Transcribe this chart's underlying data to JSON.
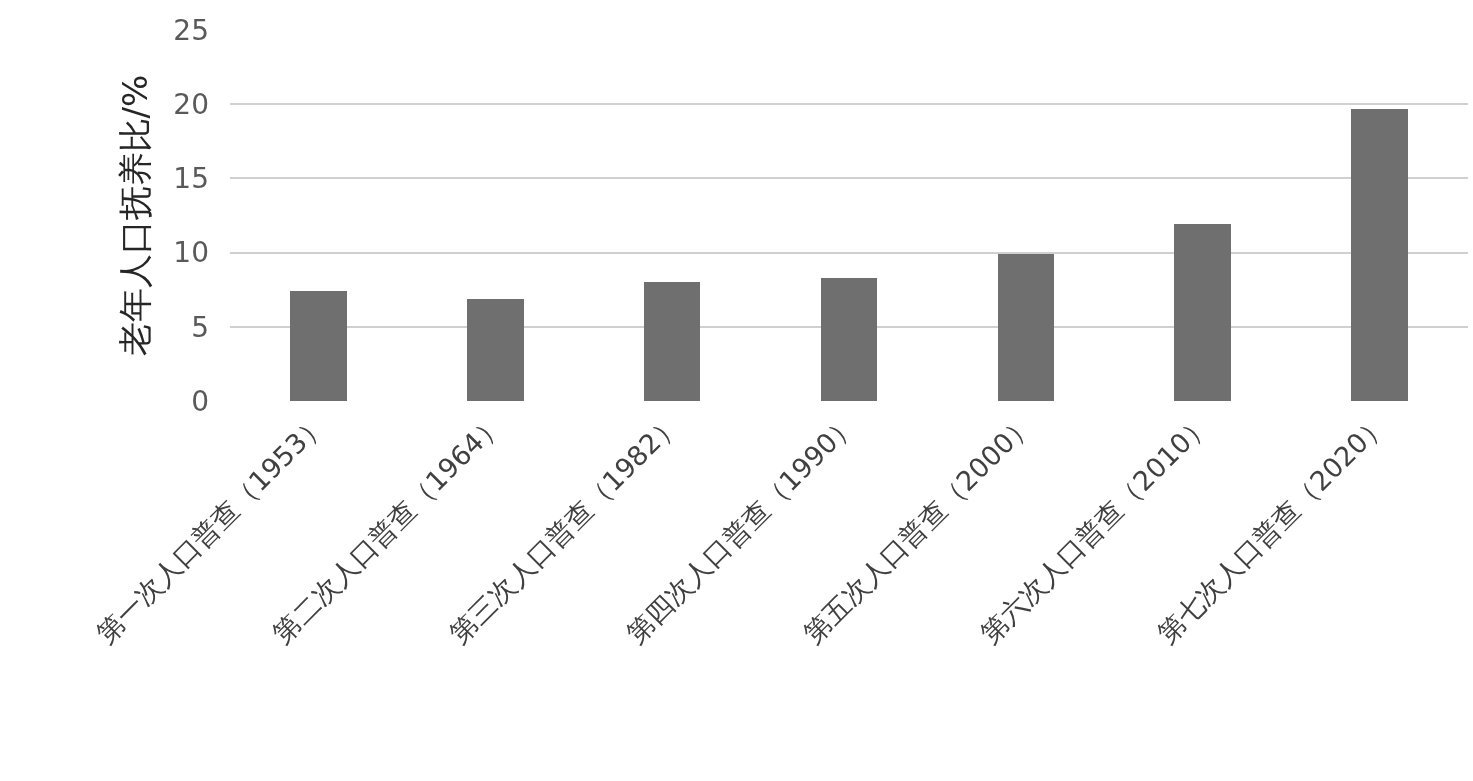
{
  "chart_data": {
    "type": "bar",
    "ylabel": "老年人口抚养比/%",
    "categories": [
      "第一次人口普查（1953）",
      "第二次人口普查（1964）",
      "第三次人口普查（1982）",
      "第四次人口普查（1990）",
      "第五次人口普查（2000）",
      "第六次人口普查（2010）",
      "第七次人口普查（2020）"
    ],
    "values": [
      7.4,
      6.9,
      8.0,
      8.3,
      9.9,
      11.9,
      19.7
    ],
    "color": "#6f6f6f",
    "ylim": [
      0,
      25
    ],
    "yticks": [
      0,
      5,
      10,
      15,
      20,
      25
    ],
    "grid": "y",
    "legend": false
  }
}
